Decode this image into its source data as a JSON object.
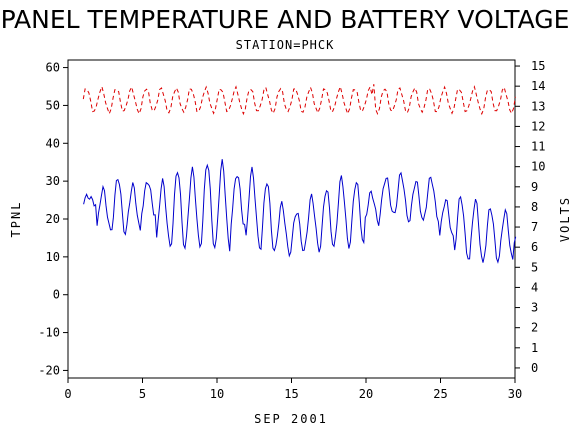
{
  "chart_data": {
    "type": "line",
    "title": "PANEL TEMPERATURE AND BATTERY VOLTAGE",
    "subtitle": "STATION=PHCK",
    "xlabel": "SEP 2001",
    "ylabel_left": "TPNL",
    "ylabel_right": "VOLTS",
    "xlim": [
      0,
      30
    ],
    "ylim_left": [
      -22,
      62
    ],
    "ylim_right": [
      -0.5,
      15.3
    ],
    "x_ticks": [
      0,
      5,
      10,
      15,
      20,
      25,
      30
    ],
    "y_ticks_left": [
      -20,
      -10,
      0,
      10,
      20,
      30,
      40,
      50,
      60
    ],
    "y_ticks_right": [
      0,
      1,
      2,
      3,
      4,
      5,
      6,
      7,
      8,
      9,
      10,
      11,
      12,
      13,
      14,
      15
    ],
    "grid": false,
    "series": [
      {
        "axis": "left",
        "color": "#0000cc",
        "style": "solid",
        "day_ranges": [
          [
            1,
            24,
            26
          ],
          [
            2,
            17,
            28
          ],
          [
            3,
            16,
            31
          ],
          [
            4,
            17,
            29
          ],
          [
            5,
            21,
            30
          ],
          [
            6,
            13,
            30
          ],
          [
            7,
            12,
            33
          ],
          [
            8,
            13,
            33
          ],
          [
            9,
            12,
            35
          ],
          [
            10,
            12,
            35
          ],
          [
            11,
            18,
            32
          ],
          [
            12,
            13,
            33
          ],
          [
            13,
            11,
            30
          ],
          [
            14,
            11,
            24
          ],
          [
            15,
            11,
            22
          ],
          [
            16,
            12,
            26
          ],
          [
            17,
            12,
            28
          ],
          [
            18,
            13,
            31
          ],
          [
            19,
            13,
            30
          ],
          [
            20,
            19,
            27
          ],
          [
            21,
            21,
            31
          ],
          [
            22,
            20,
            32
          ],
          [
            23,
            19,
            30
          ],
          [
            24,
            20,
            31
          ],
          [
            25,
            15,
            25
          ],
          [
            26,
            10,
            26
          ],
          [
            27,
            8,
            25
          ],
          [
            28,
            9,
            23
          ],
          [
            29,
            9,
            22
          ],
          [
            30,
            13,
            22
          ]
        ]
      },
      {
        "axis": "right",
        "color": "#dd0000",
        "style": "dashed",
        "low": 12.7,
        "high": 13.9,
        "peak_day": 20.5,
        "peak_value": 14.1
      }
    ]
  }
}
